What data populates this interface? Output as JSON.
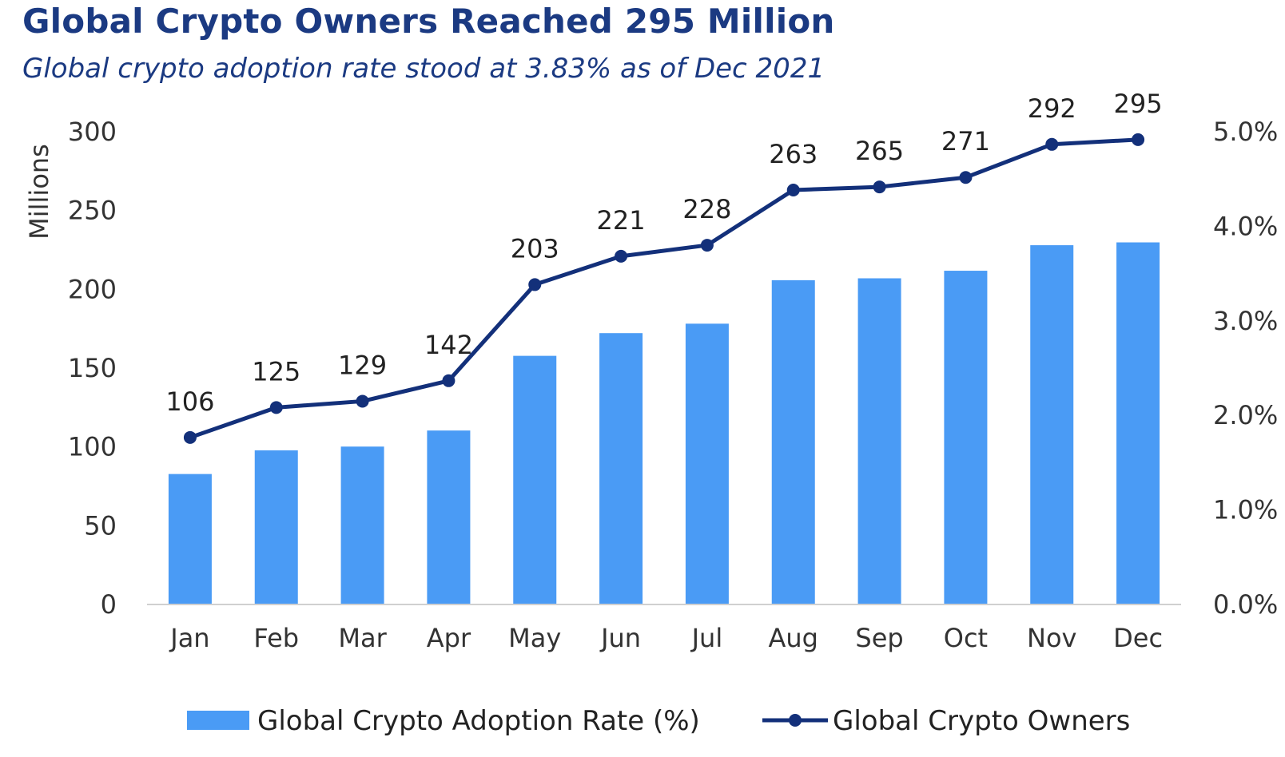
{
  "title": "Global Crypto Owners Reached 295 Million",
  "subtitle": "Global crypto adoption rate stood at 3.83% as of Dec 2021",
  "colors": {
    "bar": "#4a9bf5",
    "line": "#13307a",
    "title": "#1b3a82",
    "axis": "#d0d0d0"
  },
  "chart_data": {
    "type": "bar",
    "categories": [
      "Jan",
      "Feb",
      "Mar",
      "Apr",
      "May",
      "Jun",
      "Jul",
      "Aug",
      "Sep",
      "Oct",
      "Nov",
      "Dec"
    ],
    "series": [
      {
        "name": "Global Crypto Adoption Rate (%)",
        "type": "bar",
        "axis": "right",
        "values": [
          1.38,
          1.63,
          1.67,
          1.84,
          2.63,
          2.87,
          2.97,
          3.43,
          3.45,
          3.53,
          3.8,
          3.83
        ]
      },
      {
        "name": "Global Crypto Owners",
        "type": "line",
        "axis": "left",
        "values": [
          106,
          125,
          129,
          142,
          203,
          221,
          228,
          263,
          265,
          271,
          292,
          295
        ],
        "data_labels": [
          "106",
          "125",
          "129",
          "142",
          "203",
          "221",
          "228",
          "263",
          "265",
          "271",
          "292",
          "295"
        ]
      }
    ],
    "ylabel": "Millions",
    "ylim": [
      0,
      300
    ],
    "yticks": [
      "0",
      "50",
      "100",
      "150",
      "200",
      "250",
      "300"
    ],
    "y2lim": [
      0,
      5.0
    ],
    "y2ticks": [
      "0.0%",
      "1.0%",
      "2.0%",
      "3.0%",
      "4.0%",
      "5.0%"
    ],
    "grid": false,
    "legend_position": "bottom"
  }
}
